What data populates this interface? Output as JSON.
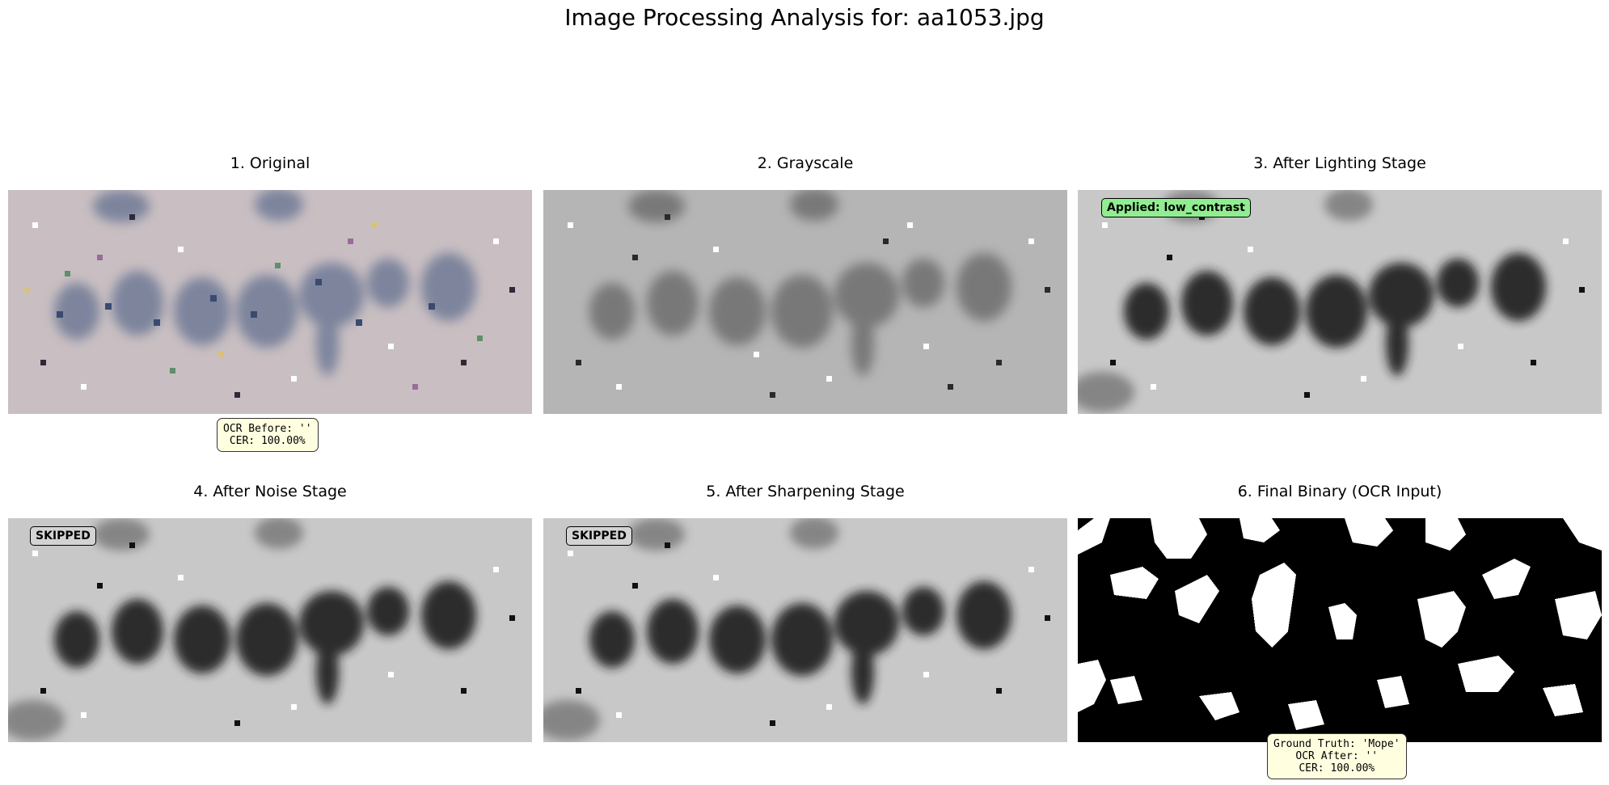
{
  "figure": {
    "title": "Image Processing Analysis for: aa1053.jpg"
  },
  "panels": [
    {
      "title": "1. Original"
    },
    {
      "title": "2. Grayscale"
    },
    {
      "title": "3. After Lighting Stage",
      "badge": "Applied: low_contrast"
    },
    {
      "title": "4. After Noise Stage",
      "badge": "SKIPPED"
    },
    {
      "title": "5. After Sharpening Stage",
      "badge": "SKIPPED"
    },
    {
      "title": "6. Final Binary (OCR Input)"
    }
  ],
  "ocr_before": {
    "line1": "OCR Before: ''",
    "line2": "CER: 100.00%"
  },
  "ocr_after": {
    "line1": "Ground Truth: 'Mope'",
    "line2": "OCR After: ''",
    "line3": "CER: 100.00%"
  },
  "colors": {
    "applied_badge": "#90ee90",
    "skipped_badge": "#d3d3d3",
    "info_box": "#ffffe0"
  }
}
